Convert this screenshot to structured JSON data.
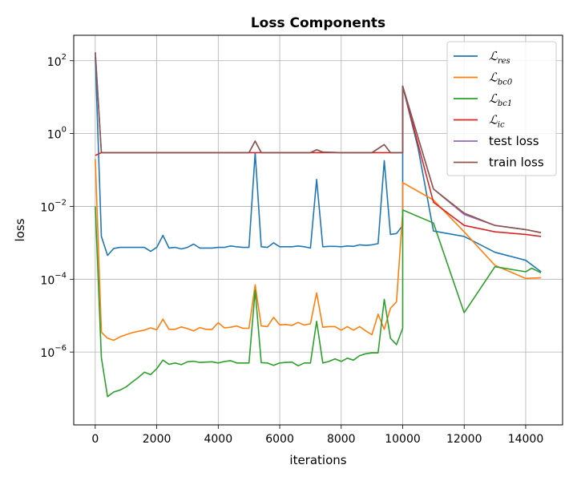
{
  "chart_data": {
    "type": "line",
    "title": "Loss Components",
    "xlabel": "iterations",
    "ylabel": "loss",
    "yscale": "log",
    "xlim": [
      -700,
      15200
    ],
    "ylim": [
      1e-08,
      500
    ],
    "grid": true,
    "legend_position": "top-right",
    "x_ticks": [
      0,
      2000,
      4000,
      6000,
      8000,
      10000,
      12000,
      14000
    ],
    "x_tick_labels": [
      "0",
      "2000",
      "4000",
      "6000",
      "8000",
      "10000",
      "12000",
      "14000"
    ],
    "y_ticks": [
      1e-06,
      0.0001,
      0.01,
      1,
      100
    ],
    "y_tick_labels": [
      {
        "base": "10",
        "exp": "−6"
      },
      {
        "base": "10",
        "exp": "−4"
      },
      {
        "base": "10",
        "exp": "−2"
      },
      {
        "base": "10",
        "exp": "0"
      },
      {
        "base": "10",
        "exp": "2"
      }
    ],
    "series": [
      {
        "name": "ℒres",
        "label_main": "ℒ",
        "label_sub": "res",
        "color": "#1f77b4",
        "x": [
          0,
          200,
          400,
          600,
          800,
          1000,
          1200,
          1400,
          1600,
          1800,
          2000,
          2200,
          2400,
          2600,
          2800,
          3000,
          3200,
          3400,
          3600,
          3800,
          4000,
          4200,
          4400,
          4600,
          4800,
          5000,
          5200,
          5400,
          5600,
          5800,
          6000,
          6200,
          6400,
          6600,
          6800,
          7000,
          7200,
          7400,
          7600,
          7800,
          8000,
          8200,
          8400,
          8600,
          8800,
          9000,
          9200,
          9400,
          9600,
          9800,
          10000,
          10000,
          10500,
          11000,
          12000,
          13000,
          14000,
          14500
        ],
        "y": [
          130,
          0.0015,
          0.00045,
          0.0007,
          0.00075,
          0.00075,
          0.00075,
          0.00075,
          0.00075,
          0.00058,
          0.00075,
          0.0016,
          0.00072,
          0.00075,
          0.00068,
          0.00075,
          0.00092,
          0.00072,
          0.00072,
          0.00072,
          0.00075,
          0.00075,
          0.00082,
          0.00078,
          0.00075,
          0.00075,
          0.3,
          0.00078,
          0.00075,
          0.001,
          0.00078,
          0.00078,
          0.00078,
          0.00082,
          0.00078,
          0.00072,
          0.055,
          0.00078,
          0.0008,
          0.0008,
          0.00078,
          0.00082,
          0.0008,
          0.00088,
          0.00085,
          0.00088,
          0.00095,
          0.18,
          0.0017,
          0.0018,
          0.003,
          20,
          0.4,
          0.0021,
          0.0015,
          0.00055,
          0.00033,
          0.00016
        ]
      },
      {
        "name": "ℒbc0",
        "label_main": "ℒ",
        "label_sub": "bc0",
        "color": "#ff7f0e",
        "x": [
          0,
          200,
          400,
          600,
          800,
          1000,
          1200,
          1400,
          1600,
          1800,
          2000,
          2200,
          2400,
          2600,
          2800,
          3000,
          3200,
          3400,
          3600,
          3800,
          4000,
          4200,
          4400,
          4600,
          4800,
          5000,
          5200,
          5400,
          5600,
          5800,
          6000,
          6200,
          6400,
          6600,
          6800,
          7000,
          7200,
          7400,
          7600,
          7800,
          8000,
          8200,
          8400,
          8600,
          8800,
          9000,
          9200,
          9400,
          9600,
          9800,
          10000,
          10000,
          11000,
          12000,
          13000,
          14000,
          14500
        ],
        "y": [
          0.2,
          3.5e-06,
          2.4e-06,
          2.1e-06,
          2.6e-06,
          3e-06,
          3.4e-06,
          3.7e-06,
          4e-06,
          4.6e-06,
          4.1e-06,
          8e-06,
          4.2e-06,
          4.2e-06,
          4.9e-06,
          4.4e-06,
          3.8e-06,
          4.7e-06,
          4.2e-06,
          4.2e-06,
          6.4e-06,
          4.6e-06,
          4.8e-06,
          5.2e-06,
          4.5e-06,
          4.5e-06,
          7e-05,
          5.2e-06,
          5e-06,
          9e-06,
          5.6e-06,
          5.7e-06,
          5.4e-06,
          6.5e-06,
          5.5e-06,
          6e-06,
          4.2e-05,
          4.8e-06,
          5e-06,
          5e-06,
          4e-06,
          5e-06,
          4e-06,
          5e-06,
          3.8e-06,
          3e-06,
          1.1e-05,
          4.2e-06,
          1.6e-05,
          2.4e-05,
          0.007,
          0.045,
          0.015,
          0.002,
          0.00024,
          0.000105,
          0.00011
        ]
      },
      {
        "name": "ℒbc1",
        "label_main": "ℒ",
        "label_sub": "bc1",
        "color": "#2ca02c",
        "x": [
          0,
          200,
          400,
          600,
          800,
          1000,
          1200,
          1400,
          1600,
          1800,
          2000,
          2200,
          2400,
          2600,
          2800,
          3000,
          3200,
          3400,
          3600,
          3800,
          4000,
          4200,
          4400,
          4600,
          4800,
          5000,
          5200,
          5400,
          5600,
          5800,
          6000,
          6200,
          6400,
          6600,
          6800,
          7000,
          7200,
          7400,
          7600,
          7800,
          8000,
          8200,
          8400,
          8600,
          8800,
          9000,
          9200,
          9400,
          9600,
          9800,
          10000,
          10000,
          11000,
          12000,
          13000,
          14000,
          14200,
          14500
        ],
        "y": [
          0.01,
          7e-07,
          6e-08,
          8e-08,
          9e-08,
          1.1e-07,
          1.5e-07,
          2e-07,
          2.8e-07,
          2.4e-07,
          3.5e-07,
          6e-07,
          4.6e-07,
          5e-07,
          4.5e-07,
          5.4e-07,
          5.6e-07,
          5.2e-07,
          5.3e-07,
          5.4e-07,
          5e-07,
          5.5e-07,
          5.8e-07,
          5e-07,
          5e-07,
          5e-07,
          5e-05,
          5.1e-07,
          5e-07,
          4.3e-07,
          5e-07,
          5.2e-07,
          5.3e-07,
          4.2e-07,
          5e-07,
          5e-07,
          7e-06,
          5e-07,
          5.5e-07,
          6.5e-07,
          5.5e-07,
          6.8e-07,
          6e-07,
          8e-07,
          9e-07,
          9.5e-07,
          9.5e-07,
          2.8e-05,
          2.4e-06,
          1.6e-06,
          4.5e-06,
          0.008,
          0.0035,
          1.2e-05,
          0.00022,
          0.00016,
          0.0002,
          0.00015
        ]
      },
      {
        "name": "ℒic",
        "label_main": "ℒ",
        "label_sub": "ic",
        "color": "#d62728",
        "x": [
          0,
          200,
          5000,
          10000,
          10000,
          11000,
          12000,
          13000,
          14000,
          14500
        ],
        "y": [
          0.25,
          0.3,
          0.3,
          0.3,
          20,
          0.013,
          0.003,
          0.002,
          0.0017,
          0.0015
        ]
      },
      {
        "name": "test loss",
        "label_main": "test loss",
        "label_sub": "",
        "color": "#9467bd",
        "x": [
          0,
          200,
          400,
          1000,
          2000,
          3000,
          4000,
          5000,
          5200,
          5400,
          6000,
          7000,
          7200,
          7400,
          8000,
          9000,
          9400,
          9600,
          10000,
          10000,
          11000,
          12000,
          13000,
          14000,
          14500
        ],
        "y": [
          170,
          0.3,
          0.3,
          0.3,
          0.3,
          0.3,
          0.3,
          0.3,
          0.62,
          0.3,
          0.3,
          0.3,
          0.36,
          0.31,
          0.3,
          0.3,
          0.5,
          0.3,
          0.3,
          20,
          0.03,
          0.006,
          0.003,
          0.0023,
          0.0019
        ]
      },
      {
        "name": "train loss",
        "label_main": "train loss",
        "label_sub": "",
        "color": "#8c564b",
        "x": [
          0,
          200,
          400,
          1000,
          2000,
          3000,
          4000,
          5000,
          5200,
          5400,
          6000,
          7000,
          7200,
          7400,
          8000,
          9000,
          9400,
          9600,
          10000,
          10000,
          11000,
          12000,
          13000,
          14000,
          14500
        ],
        "y": [
          170,
          0.3,
          0.3,
          0.3,
          0.3,
          0.3,
          0.3,
          0.3,
          0.62,
          0.3,
          0.3,
          0.3,
          0.36,
          0.31,
          0.3,
          0.3,
          0.5,
          0.3,
          0.3,
          20,
          0.03,
          0.0065,
          0.003,
          0.0023,
          0.0019
        ]
      }
    ]
  }
}
